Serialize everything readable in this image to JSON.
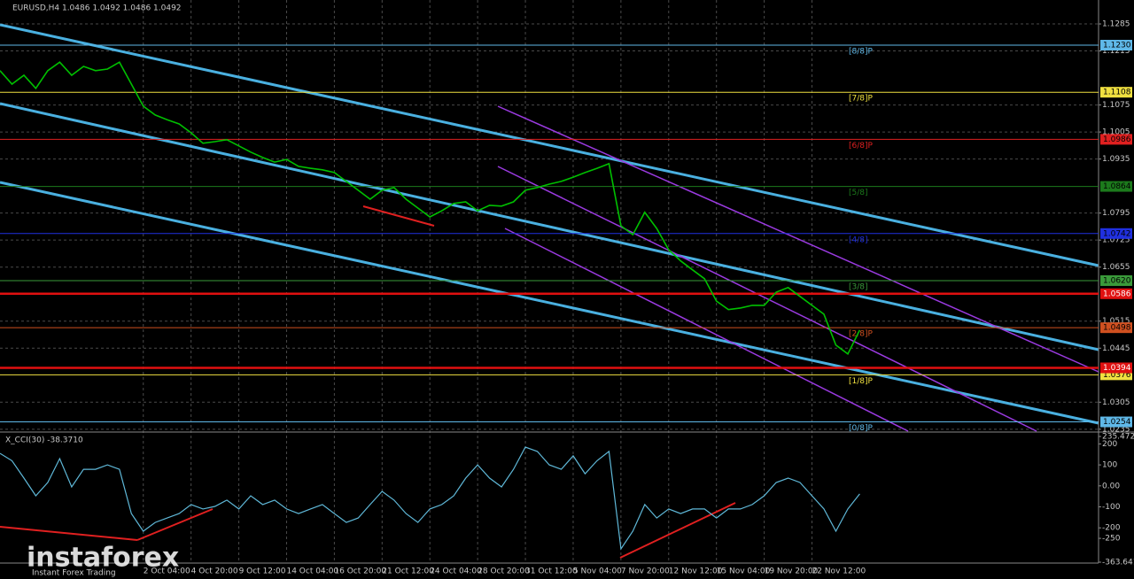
{
  "chart_data": [
    {
      "type": "line",
      "title": "EURUSD,H4  1.0486 1.0492 1.0486 1.0492",
      "color": "#00c000",
      "grid": true,
      "categories": [
        null,
        null,
        null,
        null,
        null,
        null,
        null,
        null,
        null,
        null,
        null,
        null,
        "2 Oct 04:00",
        null,
        null,
        null,
        "4 Oct 20:00",
        null,
        null,
        null,
        "9 Oct 12:00",
        null,
        null,
        null,
        "14 Oct 04:00",
        null,
        null,
        null,
        "16 Oct 20:00",
        null,
        null,
        null,
        "21 Oct 12:00",
        null,
        null,
        null,
        "24 Oct 04:00",
        null,
        null,
        null,
        "28 Oct 20:00",
        null,
        null,
        null,
        "31 Oct 12:00",
        null,
        null,
        null,
        "5 Nov 04:00",
        null,
        null,
        null,
        "7 Nov 20:00",
        null,
        null,
        null,
        "12 Nov 12:00",
        null,
        null,
        null,
        "15 Nov 04:00",
        null,
        null,
        null,
        "19 Nov 20:00",
        null,
        null,
        null,
        "22 Nov 12:00",
        null,
        null,
        null,
        null,
        null,
        null,
        null,
        null,
        null,
        null,
        null,
        null,
        null,
        null,
        null,
        null,
        null,
        null,
        null,
        null,
        null,
        null,
        null
      ],
      "values": [
        1.1164,
        1.1129,
        1.1152,
        1.1118,
        1.1164,
        1.1186,
        1.1152,
        1.1175,
        1.1164,
        1.1168,
        1.1186,
        1.1129,
        1.1072,
        1.1049,
        1.1037,
        1.1026,
        1.1003,
        1.0976,
        1.098,
        1.0985,
        1.0969,
        1.0953,
        1.0939,
        1.0927,
        1.0934,
        1.0916,
        1.0911,
        1.0907,
        1.09,
        1.0877,
        1.0854,
        1.0831,
        1.0854,
        1.0861,
        1.0831,
        1.0808,
        1.0785,
        1.0801,
        1.082,
        1.0824,
        1.0801,
        1.0815,
        1.0813,
        1.0824,
        1.0854,
        1.0861,
        1.087,
        1.0877,
        1.0888,
        1.09,
        1.0911,
        1.0923,
        1.0762,
        1.0739,
        1.0797,
        1.0755,
        1.07,
        1.0671,
        1.0648,
        1.0625,
        1.0567,
        1.0545,
        1.0549,
        1.0556,
        1.0556,
        1.059,
        1.0602,
        1.0579,
        1.0556,
        1.0533,
        1.0453,
        1.043,
        1.0492,
        null,
        null,
        null,
        null,
        null,
        null,
        null,
        null,
        null,
        null,
        null,
        null,
        null,
        null,
        null,
        null,
        null,
        null,
        null
      ],
      "ylim": [
        1.023,
        1.1347
      ],
      "yticks": [
        1.1285,
        1.1215,
        1.1075,
        1.1005,
        1.0935,
        1.0795,
        1.0725,
        1.0655,
        1.0515,
        1.0445,
        1.0305,
        1.0235
      ],
      "levels": [
        {
          "name": "[8/8]P",
          "value": 1.123,
          "label": "1.1230",
          "color": "#5fb8e8"
        },
        {
          "name": "[7/8]P",
          "value": 1.1108,
          "label": "1.1108",
          "color": "#f0e040"
        },
        {
          "name": "[6/8]P",
          "value": 1.0986,
          "label": "1.0986",
          "color": "#e02020"
        },
        {
          "name": "[5/8]",
          "value": 1.0864,
          "label": "1.0864",
          "color": "#1c7a1c"
        },
        {
          "name": "[4/8]",
          "value": 1.0742,
          "label": "1.0742",
          "color": "#2030e0"
        },
        {
          "name": "[3/8]",
          "value": 1.062,
          "label": "1.0620",
          "color": "#3a9a3a"
        },
        {
          "name": "[2/8]P",
          "value": 1.0498,
          "label": "1.0498",
          "color": "#d05020"
        },
        {
          "name": "[1/8]P",
          "value": 1.0376,
          "label": "1.0376",
          "color": "#f0e040"
        },
        {
          "name": "[0/8]P",
          "value": 1.0254,
          "label": "1.0254",
          "color": "#5fb8e8"
        }
      ],
      "sr_lines": [
        {
          "value": 1.0586,
          "label": "1.0586",
          "color": "#e01010"
        },
        {
          "value": 1.0394,
          "label": "1.0394",
          "color": "#e01010"
        }
      ]
    },
    {
      "type": "line",
      "title": "X_CCI(30) -38.3710",
      "color": "#5fb8d8",
      "values": [
        155,
        120,
        37,
        -47,
        16,
        130,
        -5,
        79,
        79,
        100,
        79,
        -132,
        -216,
        -174,
        -153,
        -132,
        -89,
        -110,
        -98,
        -68,
        -110,
        -47,
        -89,
        -68,
        -110,
        -132,
        -110,
        -89,
        -132,
        -174,
        -153,
        -89,
        -26,
        -68,
        -132,
        -174,
        -110,
        -89,
        -47,
        37,
        100,
        37,
        -5,
        79,
        185,
        164,
        100,
        79,
        143,
        58,
        120,
        164,
        -300,
        -216,
        -89,
        -153,
        -110,
        -132,
        -110,
        -110,
        -153,
        -110,
        -110,
        -89,
        -47,
        16,
        37,
        16,
        -47,
        -110,
        -216,
        -110,
        -38.371,
        null,
        null,
        null,
        null,
        null,
        null,
        null,
        null,
        null,
        null,
        null,
        null,
        null,
        null,
        null,
        null,
        null,
        null,
        null
      ],
      "ylim": [
        -363.641,
        235.4725
      ],
      "yticks": [
        235.4725,
        200,
        100,
        {
          "value": 0,
          "label": "0.00"
        },
        -100,
        -200,
        -250,
        -363.641
      ]
    }
  ],
  "watermark": {
    "brand": "instaforex",
    "tagline": "Instant Forex Trading"
  }
}
